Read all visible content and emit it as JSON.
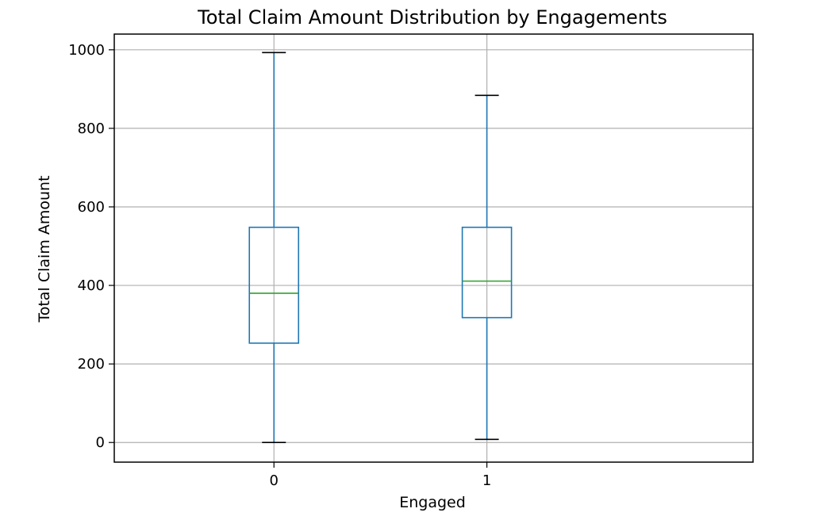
{
  "chart_data": {
    "type": "box",
    "title": "Total Claim Amount Distribution by Engagements",
    "xlabel": "Engaged",
    "ylabel": "Total Claim Amount",
    "categories": [
      "0",
      "1"
    ],
    "y_ticks": [
      0,
      200,
      400,
      600,
      800,
      1000
    ],
    "ylim": [
      -50,
      1040
    ],
    "grid": true,
    "boxes": [
      {
        "category": "0",
        "whisker_low": 0,
        "q1": 253,
        "median": 380,
        "q3": 548,
        "whisker_high": 993
      },
      {
        "category": "1",
        "whisker_low": 8,
        "q1": 318,
        "median": 411,
        "q3": 548,
        "whisker_high": 884
      }
    ],
    "colors": {
      "box": "#1f77b4",
      "median": "#2ca02c",
      "cap": "#000000",
      "grid": "#b0b0b0"
    }
  }
}
